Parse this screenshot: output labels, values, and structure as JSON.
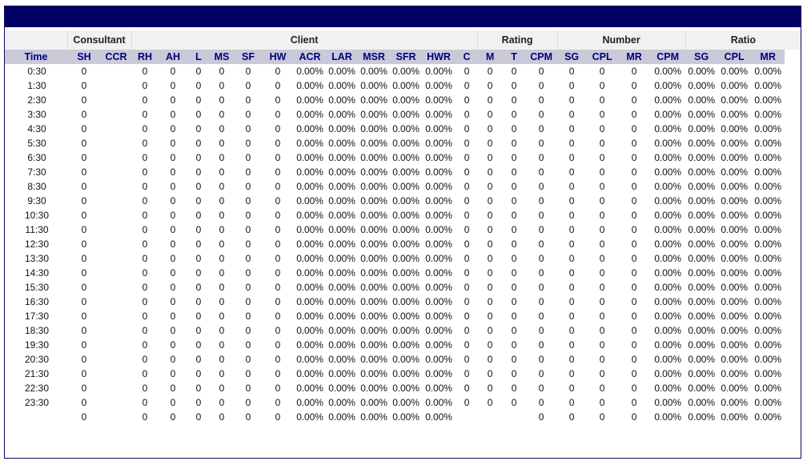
{
  "groups": [
    {
      "label": "",
      "span": 1
    },
    {
      "label": "Consultant",
      "span": 2
    },
    {
      "label": "Client",
      "span": 12
    },
    {
      "label": "Rating",
      "span": 3
    },
    {
      "label": "Number",
      "span": 4
    },
    {
      "label": "Ratio",
      "span": 4
    }
  ],
  "columns": [
    "Time",
    "SH",
    "CCR",
    "RH",
    "AH",
    "L",
    "MS",
    "SF",
    "HW",
    "ACR",
    "LAR",
    "MSR",
    "SFR",
    "HWR",
    "C",
    "M",
    "T",
    "CPM",
    "SG",
    "CPL",
    "MR",
    "CPM",
    "SG",
    "CPL",
    "MR"
  ],
  "rows": [
    [
      "0:30",
      "0",
      "",
      "0",
      "0",
      "0",
      "0",
      "0",
      "0",
      "0.00%",
      "0.00%",
      "0.00%",
      "0.00%",
      "0.00%",
      "0",
      "0",
      "0",
      "0",
      "0",
      "0",
      "0",
      "0.00%",
      "0.00%",
      "0.00%",
      "0.00%"
    ],
    [
      "1:30",
      "0",
      "",
      "0",
      "0",
      "0",
      "0",
      "0",
      "0",
      "0.00%",
      "0.00%",
      "0.00%",
      "0.00%",
      "0.00%",
      "0",
      "0",
      "0",
      "0",
      "0",
      "0",
      "0",
      "0.00%",
      "0.00%",
      "0.00%",
      "0.00%"
    ],
    [
      "2:30",
      "0",
      "",
      "0",
      "0",
      "0",
      "0",
      "0",
      "0",
      "0.00%",
      "0.00%",
      "0.00%",
      "0.00%",
      "0.00%",
      "0",
      "0",
      "0",
      "0",
      "0",
      "0",
      "0",
      "0.00%",
      "0.00%",
      "0.00%",
      "0.00%"
    ],
    [
      "3:30",
      "0",
      "",
      "0",
      "0",
      "0",
      "0",
      "0",
      "0",
      "0.00%",
      "0.00%",
      "0.00%",
      "0.00%",
      "0.00%",
      "0",
      "0",
      "0",
      "0",
      "0",
      "0",
      "0",
      "0.00%",
      "0.00%",
      "0.00%",
      "0.00%"
    ],
    [
      "4:30",
      "0",
      "",
      "0",
      "0",
      "0",
      "0",
      "0",
      "0",
      "0.00%",
      "0.00%",
      "0.00%",
      "0.00%",
      "0.00%",
      "0",
      "0",
      "0",
      "0",
      "0",
      "0",
      "0",
      "0.00%",
      "0.00%",
      "0.00%",
      "0.00%"
    ],
    [
      "5:30",
      "0",
      "",
      "0",
      "0",
      "0",
      "0",
      "0",
      "0",
      "0.00%",
      "0.00%",
      "0.00%",
      "0.00%",
      "0.00%",
      "0",
      "0",
      "0",
      "0",
      "0",
      "0",
      "0",
      "0.00%",
      "0.00%",
      "0.00%",
      "0.00%"
    ],
    [
      "6:30",
      "0",
      "",
      "0",
      "0",
      "0",
      "0",
      "0",
      "0",
      "0.00%",
      "0.00%",
      "0.00%",
      "0.00%",
      "0.00%",
      "0",
      "0",
      "0",
      "0",
      "0",
      "0",
      "0",
      "0.00%",
      "0.00%",
      "0.00%",
      "0.00%"
    ],
    [
      "7:30",
      "0",
      "",
      "0",
      "0",
      "0",
      "0",
      "0",
      "0",
      "0.00%",
      "0.00%",
      "0.00%",
      "0.00%",
      "0.00%",
      "0",
      "0",
      "0",
      "0",
      "0",
      "0",
      "0",
      "0.00%",
      "0.00%",
      "0.00%",
      "0.00%"
    ],
    [
      "8:30",
      "0",
      "",
      "0",
      "0",
      "0",
      "0",
      "0",
      "0",
      "0.00%",
      "0.00%",
      "0.00%",
      "0.00%",
      "0.00%",
      "0",
      "0",
      "0",
      "0",
      "0",
      "0",
      "0",
      "0.00%",
      "0.00%",
      "0.00%",
      "0.00%"
    ],
    [
      "9:30",
      "0",
      "",
      "0",
      "0",
      "0",
      "0",
      "0",
      "0",
      "0.00%",
      "0.00%",
      "0.00%",
      "0.00%",
      "0.00%",
      "0",
      "0",
      "0",
      "0",
      "0",
      "0",
      "0",
      "0.00%",
      "0.00%",
      "0.00%",
      "0.00%"
    ],
    [
      "10:30",
      "0",
      "",
      "0",
      "0",
      "0",
      "0",
      "0",
      "0",
      "0.00%",
      "0.00%",
      "0.00%",
      "0.00%",
      "0.00%",
      "0",
      "0",
      "0",
      "0",
      "0",
      "0",
      "0",
      "0.00%",
      "0.00%",
      "0.00%",
      "0.00%"
    ],
    [
      "11:30",
      "0",
      "",
      "0",
      "0",
      "0",
      "0",
      "0",
      "0",
      "0.00%",
      "0.00%",
      "0.00%",
      "0.00%",
      "0.00%",
      "0",
      "0",
      "0",
      "0",
      "0",
      "0",
      "0",
      "0.00%",
      "0.00%",
      "0.00%",
      "0.00%"
    ],
    [
      "12:30",
      "0",
      "",
      "0",
      "0",
      "0",
      "0",
      "0",
      "0",
      "0.00%",
      "0.00%",
      "0.00%",
      "0.00%",
      "0.00%",
      "0",
      "0",
      "0",
      "0",
      "0",
      "0",
      "0",
      "0.00%",
      "0.00%",
      "0.00%",
      "0.00%"
    ],
    [
      "13:30",
      "0",
      "",
      "0",
      "0",
      "0",
      "0",
      "0",
      "0",
      "0.00%",
      "0.00%",
      "0.00%",
      "0.00%",
      "0.00%",
      "0",
      "0",
      "0",
      "0",
      "0",
      "0",
      "0",
      "0.00%",
      "0.00%",
      "0.00%",
      "0.00%"
    ],
    [
      "14:30",
      "0",
      "",
      "0",
      "0",
      "0",
      "0",
      "0",
      "0",
      "0.00%",
      "0.00%",
      "0.00%",
      "0.00%",
      "0.00%",
      "0",
      "0",
      "0",
      "0",
      "0",
      "0",
      "0",
      "0.00%",
      "0.00%",
      "0.00%",
      "0.00%"
    ],
    [
      "15:30",
      "0",
      "",
      "0",
      "0",
      "0",
      "0",
      "0",
      "0",
      "0.00%",
      "0.00%",
      "0.00%",
      "0.00%",
      "0.00%",
      "0",
      "0",
      "0",
      "0",
      "0",
      "0",
      "0",
      "0.00%",
      "0.00%",
      "0.00%",
      "0.00%"
    ],
    [
      "16:30",
      "0",
      "",
      "0",
      "0",
      "0",
      "0",
      "0",
      "0",
      "0.00%",
      "0.00%",
      "0.00%",
      "0.00%",
      "0.00%",
      "0",
      "0",
      "0",
      "0",
      "0",
      "0",
      "0",
      "0.00%",
      "0.00%",
      "0.00%",
      "0.00%"
    ],
    [
      "17:30",
      "0",
      "",
      "0",
      "0",
      "0",
      "0",
      "0",
      "0",
      "0.00%",
      "0.00%",
      "0.00%",
      "0.00%",
      "0.00%",
      "0",
      "0",
      "0",
      "0",
      "0",
      "0",
      "0",
      "0.00%",
      "0.00%",
      "0.00%",
      "0.00%"
    ],
    [
      "18:30",
      "0",
      "",
      "0",
      "0",
      "0",
      "0",
      "0",
      "0",
      "0.00%",
      "0.00%",
      "0.00%",
      "0.00%",
      "0.00%",
      "0",
      "0",
      "0",
      "0",
      "0",
      "0",
      "0",
      "0.00%",
      "0.00%",
      "0.00%",
      "0.00%"
    ],
    [
      "19:30",
      "0",
      "",
      "0",
      "0",
      "0",
      "0",
      "0",
      "0",
      "0.00%",
      "0.00%",
      "0.00%",
      "0.00%",
      "0.00%",
      "0",
      "0",
      "0",
      "0",
      "0",
      "0",
      "0",
      "0.00%",
      "0.00%",
      "0.00%",
      "0.00%"
    ],
    [
      "20:30",
      "0",
      "",
      "0",
      "0",
      "0",
      "0",
      "0",
      "0",
      "0.00%",
      "0.00%",
      "0.00%",
      "0.00%",
      "0.00%",
      "0",
      "0",
      "0",
      "0",
      "0",
      "0",
      "0",
      "0.00%",
      "0.00%",
      "0.00%",
      "0.00%"
    ],
    [
      "21:30",
      "0",
      "",
      "0",
      "0",
      "0",
      "0",
      "0",
      "0",
      "0.00%",
      "0.00%",
      "0.00%",
      "0.00%",
      "0.00%",
      "0",
      "0",
      "0",
      "0",
      "0",
      "0",
      "0",
      "0.00%",
      "0.00%",
      "0.00%",
      "0.00%"
    ],
    [
      "22:30",
      "0",
      "",
      "0",
      "0",
      "0",
      "0",
      "0",
      "0",
      "0.00%",
      "0.00%",
      "0.00%",
      "0.00%",
      "0.00%",
      "0",
      "0",
      "0",
      "0",
      "0",
      "0",
      "0",
      "0.00%",
      "0.00%",
      "0.00%",
      "0.00%"
    ],
    [
      "23:30",
      "0",
      "",
      "0",
      "0",
      "0",
      "0",
      "0",
      "0",
      "0.00%",
      "0.00%",
      "0.00%",
      "0.00%",
      "0.00%",
      "0",
      "0",
      "0",
      "0",
      "0",
      "0",
      "0",
      "0.00%",
      "0.00%",
      "0.00%",
      "0.00%"
    ],
    [
      "",
      "0",
      "",
      "0",
      "0",
      "0",
      "0",
      "0",
      "0",
      "0.00%",
      "0.00%",
      "0.00%",
      "0.00%",
      "0.00%",
      "",
      "",
      "",
      "0",
      "0",
      "0",
      "0",
      "0.00%",
      "0.00%",
      "0.00%",
      "0.00%"
    ]
  ],
  "colors": {
    "header_bar": "#000066",
    "column_header_bg": "#c9c9d8",
    "column_header_text": "#000080",
    "group_header_bg": "#f1f1f1"
  }
}
